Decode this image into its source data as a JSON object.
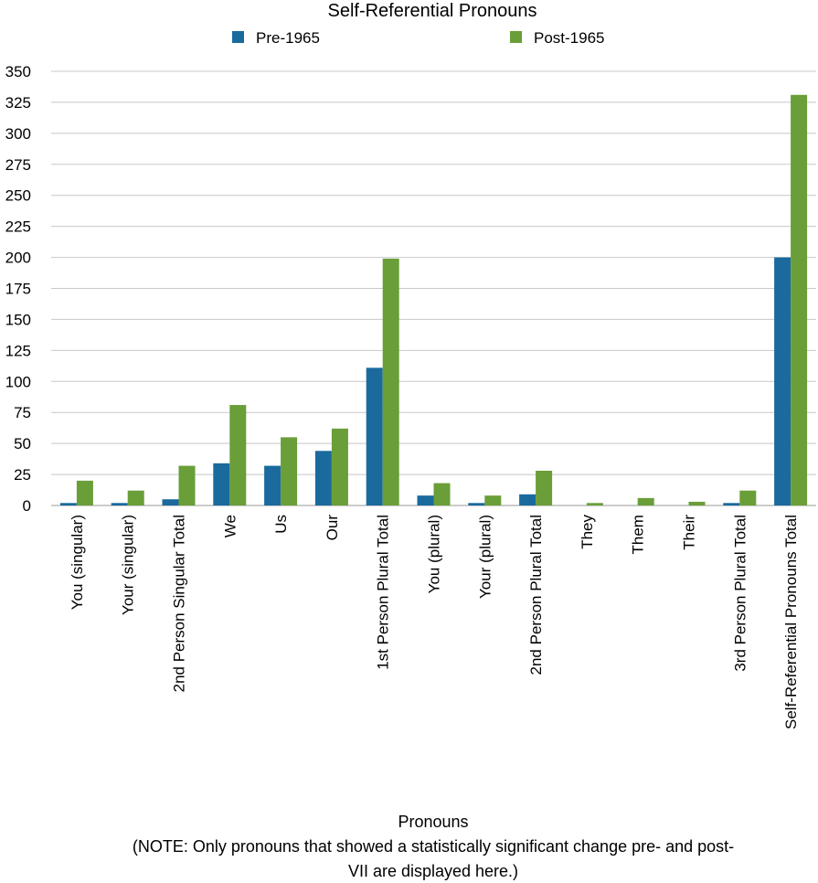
{
  "chart_data": {
    "type": "bar",
    "title": "Self-Referential Pronouns",
    "xlabel": "Pronouns",
    "note_line1": "(NOTE: Only pronouns that showed a statistically significant change pre- and post-",
    "note_line2": "VII are displayed here.)",
    "ylabel": "",
    "ylim": [
      0,
      350
    ],
    "yticks": [
      0,
      25,
      50,
      75,
      100,
      125,
      150,
      175,
      200,
      225,
      250,
      275,
      300,
      325,
      350
    ],
    "grid": true,
    "legend_position": "top-center",
    "categories": [
      "You (singular)",
      "Your (singular)",
      "2nd Person Singular Total",
      "We",
      "Us",
      "Our",
      "1st Person Plural Total",
      "You (plural)",
      "Your (plural)",
      "2nd Person Plural Total",
      "They",
      "Them",
      "Their",
      "3rd Person Plural Total",
      "Self-Referential Pronouns Total"
    ],
    "series": [
      {
        "name": "Pre-1965",
        "color": "#1a6a9e",
        "values": [
          2,
          2,
          5,
          34,
          32,
          44,
          111,
          8,
          2,
          9,
          0,
          0,
          0,
          2,
          200
        ]
      },
      {
        "name": "Post-1965",
        "color": "#6a9e38",
        "values": [
          20,
          12,
          32,
          81,
          55,
          62,
          199,
          18,
          8,
          28,
          2,
          6,
          3,
          12,
          331
        ]
      }
    ]
  }
}
